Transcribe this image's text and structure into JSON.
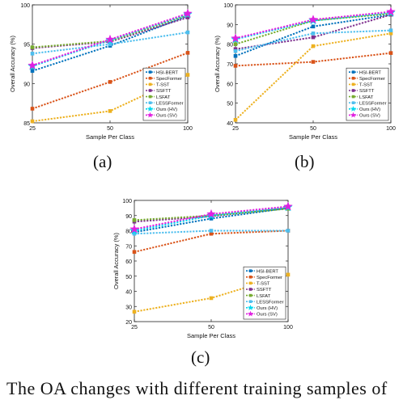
{
  "figure": {
    "captions": [
      "(a)",
      "(b)",
      "(c)"
    ],
    "body_text_fragment": "The OA changes with different training samples of"
  },
  "chart_data": [
    {
      "type": "line",
      "panel": "(a)",
      "xlabel": "Sample Per Class",
      "ylabel": "Overall Accuracy (%)",
      "x": [
        25,
        50,
        100
      ],
      "xlim": [
        25,
        100
      ],
      "ylim": [
        85,
        100
      ],
      "yticks": [
        85,
        90,
        95,
        100
      ],
      "legend_position": "bottom-right",
      "grid": false,
      "series": [
        {
          "name": "HSI-BERT",
          "values": [
            91.6,
            94.8,
            98.6
          ],
          "color": "#0072BD",
          "marker": "square"
        },
        {
          "name": "SpecFormer",
          "values": [
            86.8,
            90.2,
            93.9
          ],
          "color": "#D95319",
          "marker": "square"
        },
        {
          "name": "T-SST",
          "values": [
            85.2,
            86.5,
            91.1
          ],
          "color": "#EDB120",
          "marker": "square"
        },
        {
          "name": "SSFTT",
          "values": [
            94.5,
            95.3,
            98.4
          ],
          "color": "#7E2F8E",
          "marker": "square"
        },
        {
          "name": "LSFAT",
          "values": [
            94.6,
            95.4,
            98.7
          ],
          "color": "#77AC30",
          "marker": "square"
        },
        {
          "name": "LESSFormer",
          "values": [
            93.8,
            95.0,
            96.5
          ],
          "color": "#4DBEEE",
          "marker": "square"
        },
        {
          "name": "Ours (HV)",
          "values": [
            92.2,
            95.5,
            98.8
          ],
          "color": "#00D8F0",
          "marker": "star"
        },
        {
          "name": "Ours (SV)",
          "values": [
            92.3,
            95.6,
            98.9
          ],
          "color": "#E020E0",
          "marker": "star"
        }
      ]
    },
    {
      "type": "line",
      "panel": "(b)",
      "xlabel": "Sample Per Class",
      "ylabel": "Overall Accuracy (%)",
      "x": [
        25,
        50,
        100
      ],
      "xlim": [
        25,
        100
      ],
      "ylim": [
        40,
        100
      ],
      "yticks": [
        40,
        50,
        60,
        70,
        80,
        90,
        100
      ],
      "legend_position": "bottom-right",
      "grid": false,
      "series": [
        {
          "name": "HSI-BERT",
          "values": [
            74.0,
            89.0,
            95.0
          ],
          "color": "#0072BD",
          "marker": "square"
        },
        {
          "name": "SpecFormer",
          "values": [
            69.0,
            71.0,
            75.5
          ],
          "color": "#D95319",
          "marker": "square"
        },
        {
          "name": "T-SST",
          "values": [
            41.5,
            79.0,
            85.5
          ],
          "color": "#EDB120",
          "marker": "square"
        },
        {
          "name": "SSFTT",
          "values": [
            77.5,
            83.5,
            95.0
          ],
          "color": "#7E2F8E",
          "marker": "square"
        },
        {
          "name": "LSFAT",
          "values": [
            80.0,
            92.0,
            95.5
          ],
          "color": "#77AC30",
          "marker": "square"
        },
        {
          "name": "LESSFormer",
          "values": [
            76.5,
            85.5,
            87.0
          ],
          "color": "#4DBEEE",
          "marker": "square"
        },
        {
          "name": "Ours (HV)",
          "values": [
            82.5,
            92.0,
            96.0
          ],
          "color": "#00D8F0",
          "marker": "star"
        },
        {
          "name": "Ours (SV)",
          "values": [
            83.0,
            92.5,
            96.5
          ],
          "color": "#E020E0",
          "marker": "star"
        }
      ]
    },
    {
      "type": "line",
      "panel": "(c)",
      "xlabel": "Sample Per Class",
      "ylabel": "Overall Accuracy (%)",
      "x": [
        25,
        50,
        100
      ],
      "xlim": [
        25,
        100
      ],
      "ylim": [
        20,
        100
      ],
      "yticks": [
        20,
        30,
        40,
        50,
        60,
        70,
        80,
        90,
        100
      ],
      "legend_position": "bottom-right",
      "grid": false,
      "series": [
        {
          "name": "HSI-BERT",
          "values": [
            79.0,
            88.0,
            95.0
          ],
          "color": "#0072BD",
          "marker": "square"
        },
        {
          "name": "SpecFormer",
          "values": [
            66.0,
            78.0,
            80.0
          ],
          "color": "#D95319",
          "marker": "square"
        },
        {
          "name": "T-SST",
          "values": [
            26.5,
            35.5,
            51.0
          ],
          "color": "#EDB120",
          "marker": "square"
        },
        {
          "name": "SSFTT",
          "values": [
            86.0,
            89.5,
            95.0
          ],
          "color": "#7E2F8E",
          "marker": "square"
        },
        {
          "name": "LSFAT",
          "values": [
            87.0,
            90.0,
            94.5
          ],
          "color": "#77AC30",
          "marker": "square"
        },
        {
          "name": "LESSFormer",
          "values": [
            78.0,
            80.0,
            80.0
          ],
          "color": "#4DBEEE",
          "marker": "square"
        },
        {
          "name": "Ours (HV)",
          "values": [
            80.0,
            90.0,
            95.5
          ],
          "color": "#00D8F0",
          "marker": "star"
        },
        {
          "name": "Ours (SV)",
          "values": [
            81.0,
            91.0,
            96.0
          ],
          "color": "#E020E0",
          "marker": "star"
        }
      ]
    }
  ]
}
